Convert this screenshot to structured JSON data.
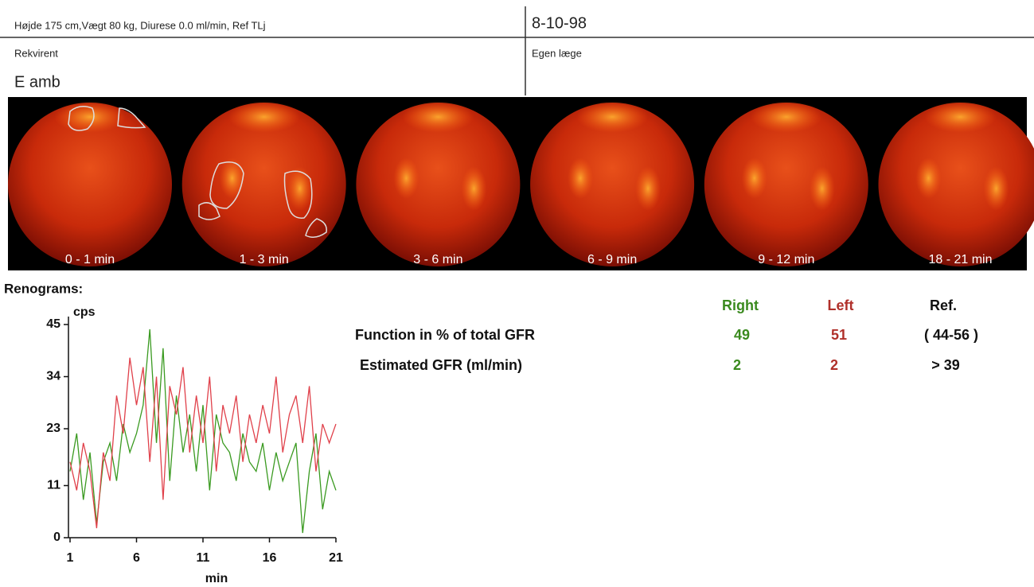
{
  "header": {
    "patient_info": "Højde 175 cm,Vægt 80 kg, Diurese 0.0 ml/min, Ref TLj",
    "date": "8-10-98",
    "requester_label": "Rekvirent",
    "requester": "E amb",
    "doctor_label": "Egen læge"
  },
  "images": [
    {
      "label": "0 - 1 min"
    },
    {
      "label": "1 - 3 min"
    },
    {
      "label": "3 - 6 min"
    },
    {
      "label": "6 - 9 min"
    },
    {
      "label": "9 - 12 min"
    },
    {
      "label": "18 - 21 min"
    }
  ],
  "chart_data": {
    "type": "line",
    "title": "Renograms:",
    "ylabel": "cps",
    "xlabel": "min",
    "x": [
      1,
      1.5,
      2,
      2.5,
      3,
      3.5,
      4,
      4.5,
      5,
      5.5,
      6,
      6.5,
      7,
      7.5,
      8,
      8.5,
      9,
      9.5,
      10,
      10.5,
      11,
      11.5,
      12,
      12.5,
      13,
      13.5,
      14,
      14.5,
      15,
      15.5,
      16,
      16.5,
      17,
      17.5,
      18,
      18.5,
      19,
      19.5,
      20,
      20.5,
      21
    ],
    "series": [
      {
        "name": "Right",
        "color": "#3a9a20",
        "values": [
          14,
          22,
          8,
          18,
          3,
          16,
          20,
          12,
          24,
          18,
          22,
          28,
          44,
          20,
          40,
          12,
          30,
          18,
          26,
          14,
          28,
          10,
          26,
          20,
          18,
          12,
          22,
          16,
          14,
          20,
          10,
          18,
          12,
          16,
          20,
          1,
          14,
          22,
          6,
          14,
          10
        ]
      },
      {
        "name": "Left",
        "color": "#e0404a",
        "values": [
          16,
          10,
          20,
          14,
          2,
          18,
          12,
          30,
          22,
          38,
          28,
          36,
          16,
          34,
          8,
          32,
          26,
          36,
          18,
          30,
          20,
          34,
          14,
          28,
          22,
          30,
          16,
          26,
          20,
          28,
          22,
          34,
          18,
          26,
          30,
          20,
          32,
          14,
          24,
          20,
          24
        ]
      }
    ],
    "xlim": [
      1,
      21
    ],
    "ylim": [
      0,
      45
    ],
    "xticks": [
      1,
      6,
      11,
      16,
      21
    ],
    "yticks": [
      0,
      11,
      23,
      34,
      45
    ]
  },
  "results": {
    "headers": [
      "Right",
      "Left",
      "Ref."
    ],
    "rows": [
      {
        "label": "Function in % of total GFR",
        "right": 49,
        "left": 51,
        "ref": "( 44-56 )"
      },
      {
        "label": "Estimated GFR (ml/min)",
        "right": 2,
        "left": 2,
        "ref": "> 39"
      }
    ]
  }
}
